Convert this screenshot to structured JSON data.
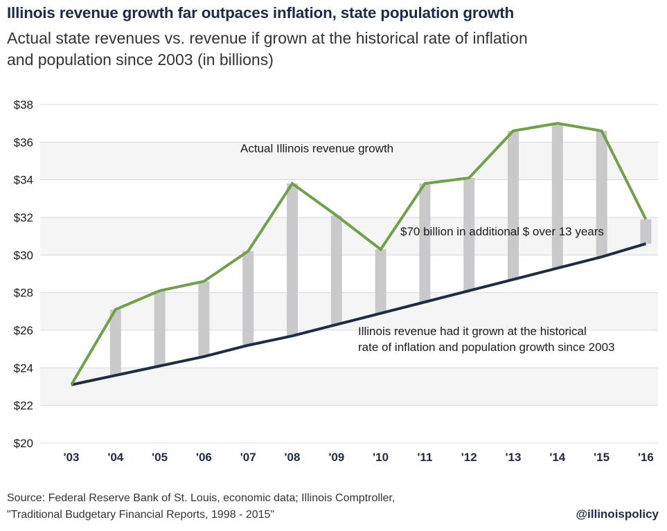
{
  "header": {
    "title": "Illinois revenue growth far outpaces inflation, state population growth",
    "subtitle_line1": "Actual state revenues vs. revenue if grown at the historical rate of inflation",
    "subtitle_line2": "and population since 2003 (in billions)"
  },
  "chart_data": {
    "type": "line",
    "categories": [
      "'03",
      "'04",
      "'05",
      "'06",
      "'07",
      "'08",
      "'09",
      "'10",
      "'11",
      "'12",
      "'13",
      "'14",
      "'15",
      "'16"
    ],
    "y_ticks": [
      "$20",
      "$22",
      "$24",
      "$26",
      "$28",
      "$30",
      "$32",
      "$34",
      "$36",
      "$38"
    ],
    "ylim": [
      20,
      38
    ],
    "grid": true,
    "series": [
      {
        "name": "Actual Illinois revenue growth",
        "color": "#6fa04a",
        "values": [
          23.1,
          27.1,
          28.1,
          28.6,
          30.2,
          33.8,
          32.1,
          30.3,
          33.8,
          34.1,
          36.6,
          37.0,
          36.6,
          31.9
        ]
      },
      {
        "name": "Illinois revenue had it grown at the historical rate of inflation and population growth since 2003",
        "color": "#1d2b45",
        "values": [
          23.1,
          23.6,
          24.1,
          24.6,
          25.2,
          25.7,
          26.3,
          26.9,
          27.5,
          28.1,
          28.7,
          29.3,
          29.9,
          30.6
        ]
      }
    ],
    "annotations": {
      "actual_label": "Actual Illinois revenue growth",
      "gap_label": "$70 billion in additional $ over 13 years",
      "baseline_label_line1": "Illinois revenue had it grown at the historical",
      "baseline_label_line2": "rate of inflation and population growth since 2003"
    },
    "gap_bar_color": "#c9c9cb",
    "band_color": "#f5f5f5"
  },
  "footer": {
    "source_line1": "Source: Federal Reserve Bank of St. Louis, economic data; Illinois Comptroller,",
    "source_line2": "\"Traditional Budgetary Financial Reports, 1998 - 2015\"",
    "handle": "@illinoispolicy"
  }
}
